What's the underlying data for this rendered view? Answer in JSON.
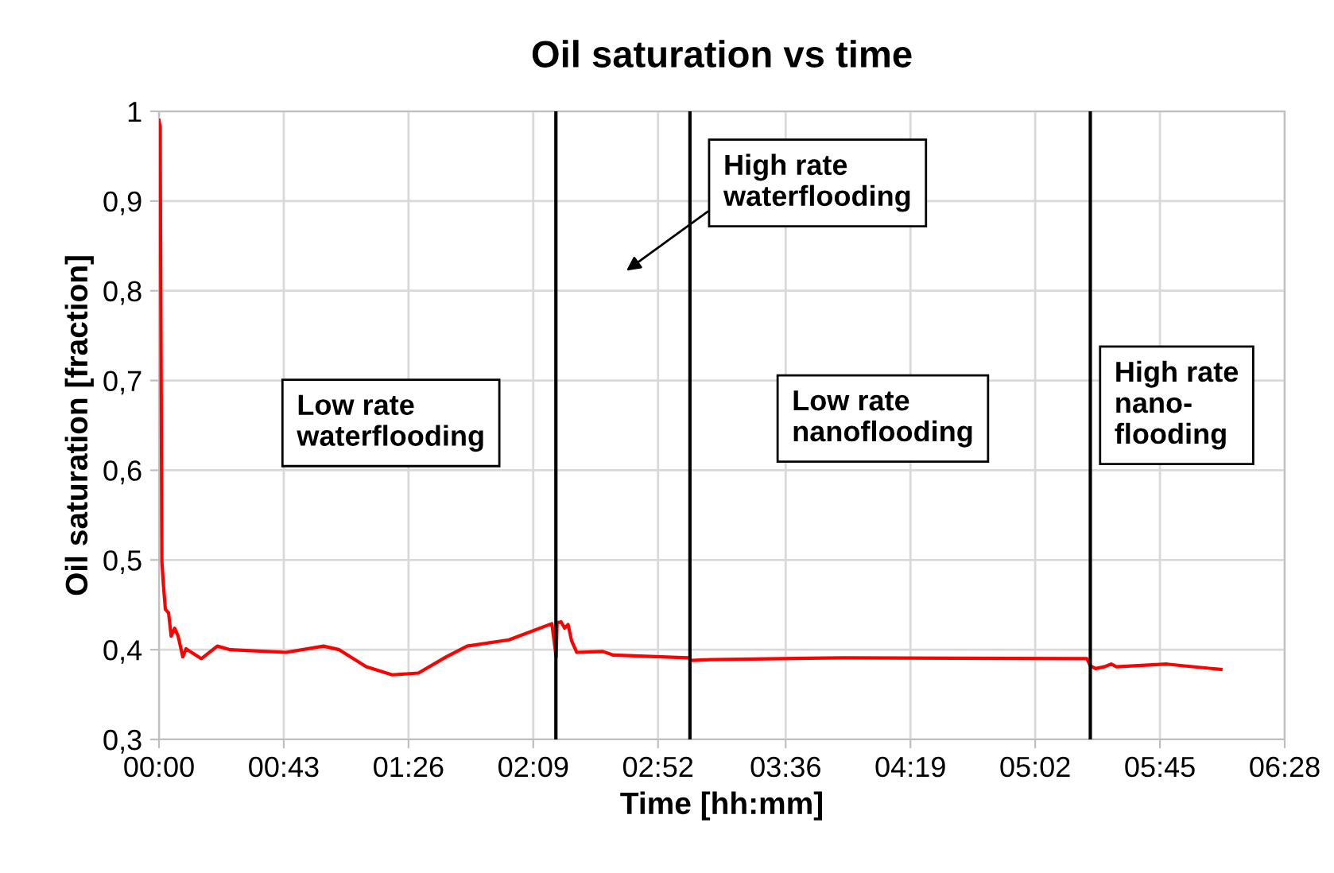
{
  "chart_data": {
    "type": "line",
    "title": "Oil saturation vs time",
    "xlabel": "Time [hh:mm]",
    "ylabel": "Oil saturation [fraction]",
    "series": [
      {
        "color": "#ff0000",
        "x": [
          0,
          0.4,
          1,
          1.5,
          2.2,
          3.3,
          4.2,
          5.4,
          6.6,
          8.2,
          9.3,
          14.6,
          20.1,
          24.6,
          43.8,
          56.7,
          62.1,
          71.4,
          80.4,
          89.4,
          99,
          106.2,
          120.6,
          135.4,
          136.9,
          137.2,
          138.6,
          139.8,
          141,
          142.2,
          144,
          153,
          156.6,
          182.4,
          183.4,
          190.2,
          235.8,
          319.8,
          321,
          322.8,
          325.8,
          328.2,
          330,
          347.4,
          353.4,
          366
        ],
        "values": [
          0.99,
          0.982,
          0.498,
          0.473,
          0.445,
          0.441,
          0.415,
          0.424,
          0.415,
          0.392,
          0.401,
          0.39,
          0.404,
          0.4,
          0.397,
          0.404,
          0.4,
          0.381,
          0.372,
          0.374,
          0.392,
          0.404,
          0.411,
          0.429,
          0.392,
          0.43,
          0.431,
          0.424,
          0.428,
          0.41,
          0.397,
          0.398,
          0.394,
          0.391,
          0.388,
          0.389,
          0.391,
          0.39,
          0.382,
          0.379,
          0.381,
          0.384,
          0.381,
          0.384,
          0.382,
          0.378
        ]
      }
    ],
    "xlim": [
      0,
      388
    ],
    "xticks": [
      {
        "value": 0,
        "label": "00:00"
      },
      {
        "value": 43,
        "label": "00:43"
      },
      {
        "value": 86,
        "label": "01:26"
      },
      {
        "value": 129,
        "label": "02:09"
      },
      {
        "value": 172,
        "label": "02:52"
      },
      {
        "value": 216,
        "label": "03:36"
      },
      {
        "value": 259,
        "label": "04:19"
      },
      {
        "value": 302,
        "label": "05:02"
      },
      {
        "value": 345,
        "label": "05:45"
      },
      {
        "value": 388,
        "label": "06:28"
      }
    ],
    "ylim": [
      0.3,
      1
    ],
    "yticks": [
      {
        "value": 0.3,
        "label": "0,3"
      },
      {
        "value": 0.4,
        "label": "0,4"
      },
      {
        "value": 0.5,
        "label": "0,5"
      },
      {
        "value": 0.6,
        "label": "0,6"
      },
      {
        "value": 0.7,
        "label": "0,7"
      },
      {
        "value": 0.8,
        "label": "0,8"
      },
      {
        "value": 0.9,
        "label": "0,9"
      },
      1
    ],
    "grid": true,
    "marker": "none",
    "line_style": "solid",
    "ref_lines": [
      {
        "axis": "x",
        "value": 136.8,
        "color": "#000000"
      },
      {
        "axis": "x",
        "value": 183,
        "color": "#000000"
      },
      {
        "axis": "x",
        "value": 321,
        "color": "#000000"
      }
    ],
    "annotations": [
      "Low rate\nwaterflooding",
      "High rate\nwaterflooding",
      "Low rate\nnanoflooding",
      "High rate\nnano-\nflooding"
    ]
  }
}
